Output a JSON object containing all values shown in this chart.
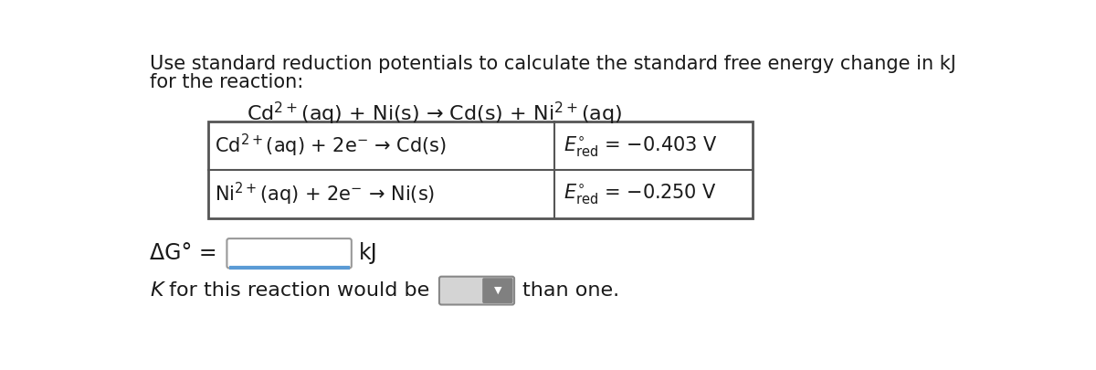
{
  "title_line1": "Use standard reduction potentials to calculate the standard free energy change in kJ",
  "title_line2": "for the reaction:",
  "reaction": "Cd$^{2+}$(aq) + Ni(s) → Cd(s) + Ni$^{2+}$(aq)",
  "row1_left": "Cd$^{2+}$(aq) + 2e$^{-}$ → Cd(s)",
  "row1_right": "$E^{\\circ}_{\\mathrm{red}}$ = −0.403 V",
  "row2_left": "Ni$^{2+}$(aq) + 2e$^{-}$ → Ni(s)",
  "row2_right": "$E^{\\circ}_{\\mathrm{red}}$ = −0.250 V",
  "delta_g_label": "ΔG° =",
  "kj_label": "kJ",
  "k_line": " for this reaction would be",
  "k_end": "than one.",
  "bg_color": "#ffffff",
  "text_color": "#1a1a1a",
  "table_border": "#555555",
  "input_box_bg": "#ffffff",
  "input_box_border": "#999999",
  "blue_line_color": "#5b9bd5",
  "drop_left_color": "#d4d4d4",
  "drop_right_color": "#808080",
  "font_size_title": 15,
  "font_size_reaction": 16,
  "font_size_table": 15,
  "font_size_delta": 17,
  "font_size_k": 16
}
